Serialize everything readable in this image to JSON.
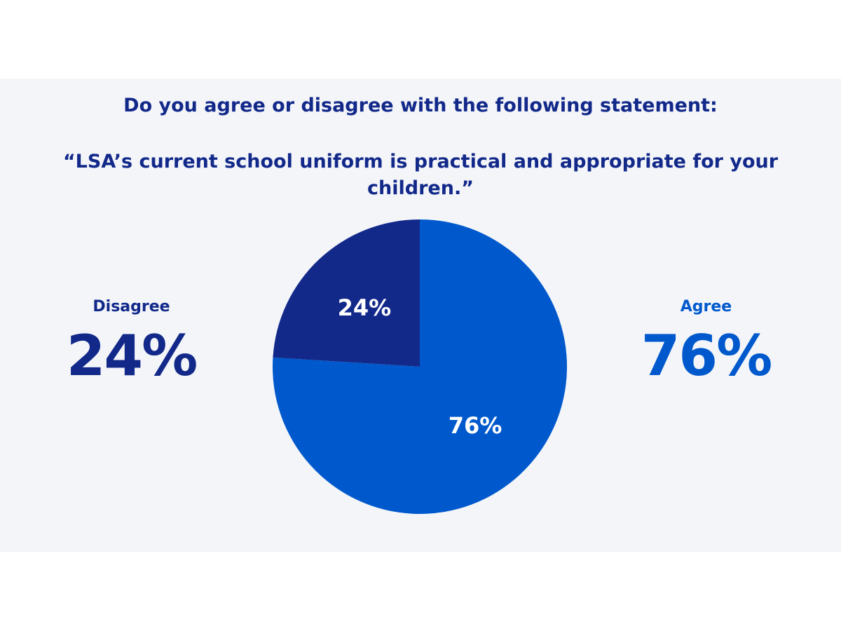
{
  "title_line1": "Do you agree or disagree with the following statement:",
  "title_line2": "“LSA’s current school uniform is practical and appropriate for your",
  "title_line3": "children.”",
  "disagree": {
    "label": "Disagree",
    "value": "24%",
    "color": "#12298a"
  },
  "agree": {
    "label": "Agree",
    "value": "76%",
    "color": "#0059cc"
  },
  "chart_data": {
    "type": "pie",
    "title": "Do you agree or disagree with the following statement: “LSA’s current school uniform is practical and appropriate for your children.”",
    "slices": [
      {
        "label": "Agree",
        "value": 76,
        "display": "76%",
        "color": "#0059cc"
      },
      {
        "label": "Disagree",
        "value": 24,
        "display": "24%",
        "color": "#12298a"
      }
    ],
    "start_angle_deg": 0,
    "direction": "clockwise",
    "legend": "none"
  }
}
